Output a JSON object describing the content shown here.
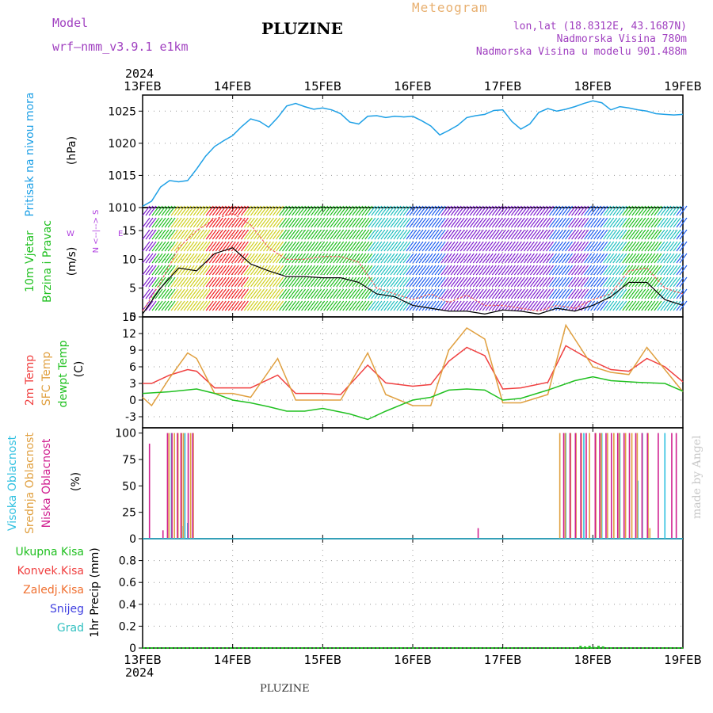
{
  "header": {
    "model_label": "Model",
    "model_name": "wrf—nmm_v3.9.1  e1km",
    "title": "PLUZINE",
    "meteogram": "Meteogram",
    "lonlat": "lon,lat (18.8312E, 43.1687N)",
    "elevation": "Nadmorska Visina 780m",
    "model_elevation": "Nadmorska Visina u modelu 901.488m",
    "year_top": "2024",
    "year_bottom": "2024"
  },
  "footer": {
    "station": "PLUZINE",
    "credit": "made by Angel"
  },
  "colors": {
    "pressure": "#1ea0e6",
    "wind_title": "#20c020",
    "wind_unit_text": "#b040e0",
    "temp_2m": "#f04040",
    "temp_sfc": "#e0a040",
    "dewpt": "#20c020",
    "cloud_high": "#30c0e0",
    "cloud_mid": "#e0a040",
    "cloud_low": "#d02090",
    "precip_total": "#20c020"
  },
  "chart_data": [
    {
      "type": "line",
      "panel": "pressure",
      "ylabel_lines": [
        "Pritisak na nivou mora",
        "(hPa)"
      ],
      "ylim": [
        1010,
        1027.5
      ],
      "yticks": [
        1010,
        1015,
        1020,
        1025
      ],
      "x_ticks": [
        "13FEB",
        "14FEB",
        "15FEB",
        "16FEB",
        "17FEB",
        "18FEB",
        "19FEB"
      ],
      "grid": true,
      "series": [
        {
          "color": "#1ea0e6",
          "x": [
            0,
            0.1,
            0.2,
            0.3,
            0.4,
            0.5,
            0.6,
            0.7,
            0.8,
            0.9,
            1.0,
            1.1,
            1.2,
            1.3,
            1.4,
            1.5,
            1.6,
            1.7,
            1.8,
            1.9,
            2.0,
            2.1,
            2.2,
            2.3,
            2.4,
            2.5,
            2.6,
            2.7,
            2.8,
            2.9,
            3.0,
            3.1,
            3.2,
            3.3,
            3.4,
            3.5,
            3.6,
            3.7,
            3.8,
            3.9,
            4.0,
            4.1,
            4.2,
            4.3,
            4.4,
            4.5,
            4.6,
            4.7,
            4.8,
            4.9,
            5.0,
            5.1,
            5.2,
            5.3,
            5.4,
            5.5,
            5.6,
            5.7,
            5.8,
            5.9,
            6.0
          ],
          "values": [
            1010.2,
            1011.0,
            1013.2,
            1014.2,
            1014.0,
            1014.2,
            1016.0,
            1018.0,
            1019.5,
            1020.4,
            1021.2,
            1022.6,
            1023.8,
            1023.4,
            1022.5,
            1024.0,
            1025.8,
            1026.2,
            1025.7,
            1025.3,
            1025.5,
            1025.2,
            1024.6,
            1023.3,
            1023.0,
            1024.2,
            1024.3,
            1024.0,
            1024.2,
            1024.1,
            1024.2,
            1023.5,
            1022.7,
            1021.3,
            1022.0,
            1022.8,
            1024.0,
            1024.3,
            1024.5,
            1025.1,
            1025.2,
            1023.4,
            1022.2,
            1023.0,
            1024.8,
            1025.4,
            1025.0,
            1025.3,
            1025.7,
            1026.2,
            1026.6,
            1026.3,
            1025.2,
            1025.7,
            1025.5,
            1025.2,
            1025.0,
            1024.6,
            1024.5,
            1024.4,
            1024.5
          ]
        }
      ]
    },
    {
      "type": "line",
      "panel": "wind",
      "ylabel_lines": [
        "10m Vjetar",
        "Brzina i Pravac",
        "(m/s)"
      ],
      "direction_key": [
        "N",
        "<--|-->",
        "S",
        "W",
        "E"
      ],
      "ylim": [
        0,
        19
      ],
      "yticks": [
        0,
        5,
        10,
        15
      ],
      "grid": true,
      "series": [
        {
          "name": "speed",
          "color": "#000000",
          "x": [
            0,
            0.2,
            0.4,
            0.6,
            0.8,
            1.0,
            1.2,
            1.4,
            1.6,
            1.8,
            2.0,
            2.2,
            2.4,
            2.6,
            2.8,
            3.0,
            3.2,
            3.4,
            3.6,
            3.8,
            4.0,
            4.2,
            4.4,
            4.6,
            4.8,
            5.0,
            5.2,
            5.4,
            5.6,
            5.8,
            6.0
          ],
          "values": [
            0.5,
            5,
            8.5,
            8,
            11,
            12,
            9.2,
            8,
            7,
            7,
            6.8,
            6.8,
            6,
            4,
            3.5,
            2,
            1.5,
            1,
            1,
            0.5,
            1.2,
            1,
            0.5,
            1.5,
            1,
            2,
            3.5,
            6,
            6,
            3,
            2
          ]
        },
        {
          "name": "gust",
          "color": "#f06060",
          "x": [
            0,
            0.2,
            0.4,
            0.6,
            0.8,
            1.0,
            1.2,
            1.4,
            1.6,
            1.8,
            2.0,
            2.2,
            2.4,
            2.6,
            2.8,
            3.0,
            3.2,
            3.4,
            3.6,
            3.8,
            4.0,
            4.2,
            4.4,
            4.6,
            4.8,
            5.0,
            5.2,
            5.4,
            5.6,
            5.8,
            6.0
          ],
          "values": [
            1,
            6,
            12,
            15,
            17,
            18,
            16,
            12,
            10,
            10,
            10.5,
            10.5,
            9.5,
            5,
            4,
            3,
            4,
            2.5,
            3.8,
            2,
            2,
            1.5,
            1,
            2,
            1.5,
            3,
            4,
            8,
            8.5,
            5,
            4
          ]
        }
      ]
    },
    {
      "type": "line",
      "panel": "temperature",
      "ylabel_lines": [
        "2m Temp",
        "SFC Temp",
        "dewpt Temp",
        "(C)"
      ],
      "ylim": [
        -5,
        15
      ],
      "yticks": [
        -3,
        0,
        3,
        6,
        9,
        12,
        15
      ],
      "grid": true,
      "series": [
        {
          "name": "2m Temp",
          "color": "#f04040",
          "x": [
            0,
            0.1,
            0.3,
            0.5,
            0.6,
            0.8,
            1.0,
            1.2,
            1.5,
            1.7,
            2.0,
            2.2,
            2.5,
            2.7,
            3.0,
            3.2,
            3.4,
            3.6,
            3.8,
            4.0,
            4.2,
            4.5,
            4.7,
            5.0,
            5.2,
            5.4,
            5.6,
            5.8,
            6.0
          ],
          "values": [
            3,
            3,
            4.5,
            5.5,
            5.2,
            2.2,
            2.2,
            2.2,
            4.5,
            1.2,
            1.2,
            1,
            6.3,
            3.1,
            2.5,
            2.8,
            7,
            9.5,
            8,
            2,
            2.2,
            3.2,
            9.8,
            7,
            5.5,
            5.2,
            7.5,
            6,
            3.3
          ]
        },
        {
          "name": "SFC Temp",
          "color": "#e0a040",
          "x": [
            0,
            0.1,
            0.3,
            0.5,
            0.6,
            0.8,
            1.0,
            1.2,
            1.5,
            1.7,
            2.0,
            2.2,
            2.5,
            2.7,
            3.0,
            3.2,
            3.4,
            3.6,
            3.8,
            4.0,
            4.2,
            4.5,
            4.7,
            5.0,
            5.2,
            5.4,
            5.6,
            5.8,
            6.0
          ],
          "values": [
            0.5,
            -1,
            4,
            8.5,
            7.5,
            1.2,
            1.2,
            0.5,
            7.5,
            0,
            0,
            0,
            8.5,
            1,
            -1,
            -1,
            9,
            13,
            11,
            -0.5,
            -0.5,
            1,
            13.5,
            6,
            5,
            4.6,
            9.5,
            5.5,
            1.5
          ]
        },
        {
          "name": "dewpt Temp",
          "color": "#20c020",
          "x": [
            0,
            0.3,
            0.6,
            0.8,
            1.0,
            1.2,
            1.4,
            1.6,
            1.8,
            2.0,
            2.3,
            2.5,
            2.7,
            3.0,
            3.2,
            3.4,
            3.6,
            3.8,
            4.0,
            4.2,
            4.5,
            4.8,
            5.0,
            5.2,
            5.5,
            5.8,
            6.0
          ],
          "values": [
            1.2,
            1.5,
            2,
            1.2,
            0,
            -0.5,
            -1.2,
            -2,
            -2,
            -1.5,
            -2.5,
            -3.5,
            -2,
            0,
            0.5,
            1.8,
            2,
            1.8,
            0,
            0.3,
            1.8,
            3.5,
            4.2,
            3.5,
            3.2,
            3,
            1.6
          ]
        }
      ]
    },
    {
      "type": "bar",
      "panel": "cloud",
      "ylabel_lines": [
        "Visoka Oblacnost",
        "Srednja Oblacnost",
        "Niska Oblacnost",
        "(%)"
      ],
      "ylim": [
        0,
        105
      ],
      "yticks": [
        0,
        25,
        50,
        75,
        100
      ],
      "grid": false,
      "series": [
        {
          "name": "Visoka Oblacnost",
          "color": "#30c0e0",
          "x": [
            0.32,
            0.45,
            0.47,
            0.5,
            4.7,
            4.9,
            5.1,
            5.3,
            5.5,
            5.55,
            5.8
          ],
          "values": [
            100,
            12,
            100,
            15,
            100,
            100,
            100,
            100,
            55,
            100,
            100
          ]
        },
        {
          "name": "Srednja Oblacnost",
          "color": "#e0a040",
          "x": [
            0.28,
            0.34,
            0.38,
            0.42,
            0.44,
            0.52,
            0.55,
            4.62,
            4.68,
            4.74,
            4.8,
            4.86,
            4.95,
            5.02,
            5.08,
            5.15,
            5.22,
            5.28,
            5.35,
            5.42,
            5.48,
            5.6,
            5.62
          ],
          "values": [
            100,
            100,
            100,
            100,
            100,
            100,
            100,
            100,
            100,
            100,
            100,
            100,
            100,
            100,
            100,
            100,
            100,
            100,
            100,
            100,
            100,
            100,
            10
          ]
        },
        {
          "name": "Niska Oblacnost",
          "color": "#d02090",
          "x": [
            0.05,
            0.2,
            0.25,
            0.3,
            0.36,
            0.4,
            0.48,
            0.53,
            3.7,
            4.65,
            4.72,
            4.78,
            4.84,
            4.9,
            5.0,
            5.05,
            5.12,
            5.18,
            5.25,
            5.32,
            5.38,
            5.45,
            5.52,
            5.58,
            5.7,
            5.85,
            5.9
          ],
          "values": [
            90,
            8,
            100,
            100,
            100,
            100,
            100,
            100,
            10,
            100,
            100,
            100,
            100,
            100,
            100,
            100,
            100,
            100,
            100,
            100,
            100,
            100,
            100,
            100,
            100,
            100,
            100
          ]
        }
      ]
    },
    {
      "type": "bar",
      "panel": "precip",
      "ylabel_lines": [
        "Ukupna Kisa",
        "Konvek.Kisa",
        "Zaledj.Kisa",
        "Snijeg",
        "Grad",
        "1hr Precip (mm)"
      ],
      "ylim": [
        0,
        1.0
      ],
      "yticks": [
        0,
        0.2,
        0.4,
        0.6,
        0.8
      ],
      "grid": true,
      "series": [
        {
          "name": "Ukupna Kisa",
          "color": "#20c020",
          "x": [
            4.85,
            4.9,
            4.95,
            5.0,
            5.05,
            5.1
          ],
          "values": [
            0.02,
            0.015,
            0.02,
            0.01,
            0.02,
            0.015
          ]
        }
      ]
    }
  ]
}
